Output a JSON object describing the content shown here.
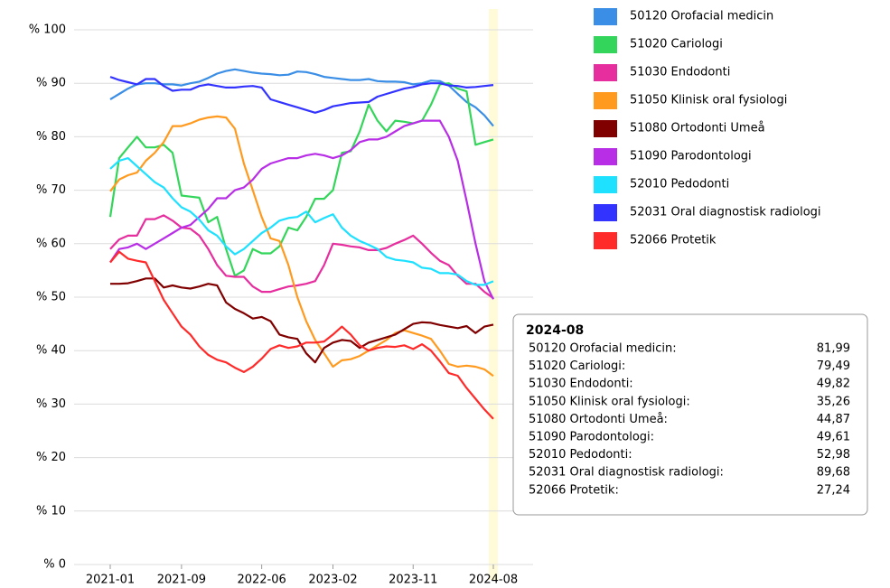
{
  "chart_data": {
    "type": "line",
    "categories": [
      "2021-01",
      null,
      null,
      null,
      null,
      null,
      null,
      null,
      "2021-09",
      null,
      null,
      null,
      null,
      null,
      null,
      null,
      null,
      "2022-06",
      null,
      null,
      null,
      null,
      null,
      null,
      null,
      "2023-02",
      null,
      null,
      null,
      null,
      null,
      null,
      null,
      null,
      "2023-11",
      null,
      null,
      null,
      null,
      null,
      null,
      null,
      null,
      "2024-08"
    ],
    "ylim": [
      0,
      100
    ],
    "yticks": [
      {
        "value": 0,
        "label": "% 0"
      },
      {
        "value": 10,
        "label": "% 10"
      },
      {
        "value": 20,
        "label": "% 20"
      },
      {
        "value": 30,
        "label": "% 30"
      },
      {
        "value": 40,
        "label": "% 40"
      },
      {
        "value": 50,
        "label": "% 50"
      },
      {
        "value": 60,
        "label": "% 60"
      },
      {
        "value": 70,
        "label": "% 70"
      },
      {
        "value": 80,
        "label": "% 80"
      },
      {
        "value": 90,
        "label": "% 90"
      },
      {
        "value": 100,
        "label": "% 100"
      }
    ],
    "grid": true,
    "legend": "right",
    "highlight_index": 43,
    "series": [
      {
        "name": "50120 Orofacial medicin",
        "color": "#3a8ee6",
        "values": [
          87,
          88,
          89,
          89.8,
          90,
          90,
          89.8,
          89.8,
          89.6,
          90,
          90.3,
          91,
          91.8,
          92.3,
          92.6,
          92.3,
          92,
          91.8,
          91.7,
          91.5,
          91.6,
          92.2,
          92.1,
          91.7,
          91.2,
          91,
          90.8,
          90.6,
          90.6,
          90.8,
          90.4,
          90.3,
          90.3,
          90.2,
          89.8,
          90,
          90.5,
          90.4,
          89.6,
          88,
          86.5,
          85.5,
          84,
          81.99
        ]
      },
      {
        "name": "51020 Cariologi",
        "color": "#33d65a",
        "values": [
          65,
          76,
          78,
          80,
          78,
          78,
          78.5,
          77,
          69,
          68.8,
          68.6,
          64,
          65,
          59,
          54,
          55,
          59,
          58.2,
          58.2,
          59.5,
          63,
          62.5,
          65,
          68.4,
          68.4,
          70,
          77,
          77.3,
          81,
          86,
          83,
          81,
          83,
          82.8,
          82.5,
          83,
          86,
          89.8,
          90,
          89,
          88.5,
          78.5,
          79,
          79.49
        ]
      },
      {
        "name": "51030 Endodonti",
        "color": "#e62e9e",
        "values": [
          59,
          60.8,
          61.5,
          61.5,
          64.6,
          64.6,
          65.3,
          64.3,
          63,
          62.8,
          61.5,
          59,
          56,
          54,
          53.8,
          53.8,
          52,
          51,
          51,
          51.5,
          52,
          52.2,
          52.5,
          53,
          56,
          60,
          59.8,
          59.5,
          59.3,
          58.8,
          58.8,
          59.2,
          60,
          60.7,
          61.5,
          60,
          58.3,
          56.8,
          56,
          54,
          52.5,
          52.5,
          51,
          49.82
        ]
      },
      {
        "name": "51050 Klinisk oral fysiologi",
        "color": "#ff9a1f",
        "values": [
          69.8,
          72,
          72.8,
          73.3,
          75.5,
          77,
          79,
          82,
          82,
          82.5,
          83.2,
          83.6,
          83.8,
          83.6,
          81.5,
          75,
          70,
          65,
          61,
          60.5,
          56,
          50,
          45.5,
          42,
          39.5,
          37,
          38.2,
          38.4,
          39,
          40,
          41,
          42,
          43.3,
          43.8,
          43.3,
          42.8,
          42.2,
          40,
          37.5,
          37,
          37.2,
          37,
          36.5,
          35.26
        ]
      },
      {
        "name": "51080 Ortodonti Umeå",
        "color": "#800000",
        "values": [
          52.5,
          52.5,
          52.6,
          53,
          53.5,
          53.5,
          51.8,
          52.2,
          51.8,
          51.6,
          52,
          52.5,
          52.2,
          49,
          47.8,
          47,
          46,
          46.3,
          45.5,
          43,
          42.5,
          42.2,
          39.5,
          37.8,
          40.5,
          41.5,
          42,
          41.8,
          40.5,
          41.5,
          42,
          42.5,
          43,
          44,
          45,
          45.3,
          45.2,
          44.8,
          44.5,
          44.2,
          44.6,
          43.3,
          44.5,
          44.87
        ]
      },
      {
        "name": "51090 Parodontologi",
        "color": "#b82ee6",
        "values": [
          56.5,
          59,
          59.3,
          60,
          59,
          60,
          61,
          62,
          63,
          63.5,
          65,
          66.5,
          68.5,
          68.5,
          70,
          70.5,
          72,
          74,
          75,
          75.5,
          76,
          76,
          76.5,
          76.8,
          76.5,
          76,
          76.5,
          77.5,
          79,
          79.5,
          79.5,
          80,
          81,
          82,
          82.5,
          83,
          83,
          83,
          80,
          75.5,
          68,
          60,
          53,
          49.61
        ]
      },
      {
        "name": "52010 Pedodonti",
        "color": "#1ee0ff",
        "values": [
          74,
          75.5,
          76,
          74.5,
          73,
          71.5,
          70.5,
          68.5,
          66.8,
          66,
          64.5,
          62.5,
          61.5,
          59.5,
          58,
          59,
          60.5,
          62,
          63,
          64.3,
          64.8,
          65,
          66,
          64,
          64.8,
          65.5,
          63,
          61.5,
          60.5,
          59.8,
          59,
          57.5,
          57,
          56.8,
          56.5,
          55.5,
          55.3,
          54.5,
          54.5,
          54.2,
          53,
          52.3,
          52.3,
          52.98
        ]
      },
      {
        "name": "52031 Oral diagnostisk radiologi",
        "color": "#3333ff",
        "values": [
          91.2,
          90.6,
          90.2,
          89.8,
          90.8,
          90.8,
          89.5,
          88.6,
          88.8,
          88.8,
          89.5,
          89.8,
          89.5,
          89.2,
          89.2,
          89.4,
          89.5,
          89.2,
          87,
          86.5,
          86,
          85.5,
          85,
          84.5,
          85,
          85.7,
          86,
          86.3,
          86.4,
          86.5,
          87.5,
          88,
          88.5,
          89,
          89.3,
          89.8,
          90,
          90,
          89.6,
          89.5,
          89.2,
          89.3,
          89.5,
          89.68
        ]
      },
      {
        "name": "52066 Protetik",
        "color": "#ff2a2a",
        "values": [
          56.5,
          58.5,
          57.2,
          56.8,
          56.5,
          53,
          49.5,
          47,
          44.5,
          43,
          40.8,
          39.2,
          38.3,
          37.8,
          36.8,
          36,
          37,
          38.5,
          40.3,
          41,
          40.5,
          40.8,
          41.5,
          41.5,
          41.7,
          43,
          44.5,
          43,
          41,
          40,
          40.5,
          40.8,
          40.7,
          41,
          40.3,
          41.2,
          40,
          38,
          35.8,
          35.3,
          33,
          31,
          29,
          27.24
        ]
      }
    ],
    "tooltip": {
      "title": "2024-08",
      "rows": [
        {
          "label": "50120 Orofacial medicin:",
          "value_label": "81,99"
        },
        {
          "label": "51020 Cariologi:",
          "value_label": "79,49"
        },
        {
          "label": "51030 Endodonti:",
          "value_label": "49,82"
        },
        {
          "label": "51050 Klinisk oral fysiologi:",
          "value_label": "35,26"
        },
        {
          "label": "51080 Ortodonti Umeå:",
          "value_label": "44,87"
        },
        {
          "label": "51090 Parodontologi:",
          "value_label": "49,61"
        },
        {
          "label": "52010 Pedodonti:",
          "value_label": "52,98"
        },
        {
          "label": "52031 Oral diagnostisk radiologi:",
          "value_label": "89,68"
        },
        {
          "label": "52066 Protetik:",
          "value_label": "27,24"
        }
      ]
    }
  }
}
